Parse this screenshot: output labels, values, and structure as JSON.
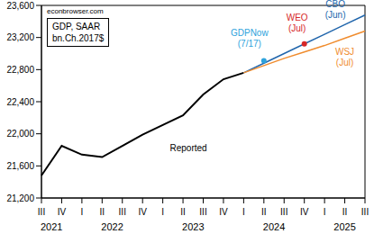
{
  "chart_data": {
    "type": "line",
    "title": "GDP, SAAR",
    "subtitle": "bn.Ch.2017$",
    "annotations": [
      "econbrowser.com"
    ],
    "categories": [
      "III",
      "IV",
      "I",
      "II",
      "III",
      "IV",
      "I",
      "II",
      "III",
      "IV",
      "I",
      "II",
      "III",
      "IV",
      "I",
      "II",
      "III"
    ],
    "year_labels": [
      {
        "label": "2021",
        "from": 0,
        "to": 1
      },
      {
        "label": "2022",
        "from": 2,
        "to": 5
      },
      {
        "label": "2023",
        "from": 6,
        "to": 9
      },
      {
        "label": "2024",
        "from": 10,
        "to": 13
      },
      {
        "label": "2025",
        "from": 14,
        "to": 16
      }
    ],
    "series": [
      {
        "name": "Reported",
        "color": "#000000",
        "type": "line",
        "values": [
          21480,
          21850,
          21740,
          21710,
          21850,
          21990,
          22110,
          22230,
          22490,
          22680,
          22760,
          null,
          null,
          null,
          null,
          null,
          null
        ]
      },
      {
        "name": "GDPNow (7/17)",
        "color": "#2ea3dc",
        "type": "scatter",
        "marker": "circle",
        "values": [
          null,
          null,
          null,
          null,
          null,
          null,
          null,
          null,
          null,
          null,
          null,
          22910,
          null,
          null,
          null,
          null,
          null
        ]
      },
      {
        "name": "WEO (Jul)",
        "color": "#d62728",
        "type": "scatter",
        "marker": "circle",
        "values": [
          null,
          null,
          null,
          null,
          null,
          null,
          null,
          null,
          null,
          null,
          null,
          null,
          null,
          23120,
          null,
          null,
          null
        ]
      },
      {
        "name": "CBO (Jun)",
        "color": "#2166ac",
        "type": "line",
        "values": [
          null,
          null,
          null,
          null,
          null,
          null,
          null,
          null,
          null,
          null,
          22760,
          22880,
          23000,
          23120,
          23240,
          23360,
          23480
        ]
      },
      {
        "name": "WSJ (Jul)",
        "color": "#f08c2e",
        "type": "line",
        "values": [
          null,
          null,
          null,
          null,
          null,
          null,
          null,
          null,
          null,
          null,
          22760,
          22850,
          22940,
          23020,
          23100,
          23190,
          23280
        ]
      }
    ],
    "ylim": [
      21200,
      23600
    ],
    "yticks": [
      {
        "value": 21200,
        "label": "21,200"
      },
      {
        "value": 21600,
        "label": "21,600"
      },
      {
        "value": 22000,
        "label": "22,000"
      },
      {
        "value": 22400,
        "label": "22,400"
      },
      {
        "value": 22800,
        "label": "22,800"
      },
      {
        "value": 23200,
        "label": "23,200"
      },
      {
        "value": 23600,
        "label": "23,600"
      }
    ],
    "grid": false
  }
}
